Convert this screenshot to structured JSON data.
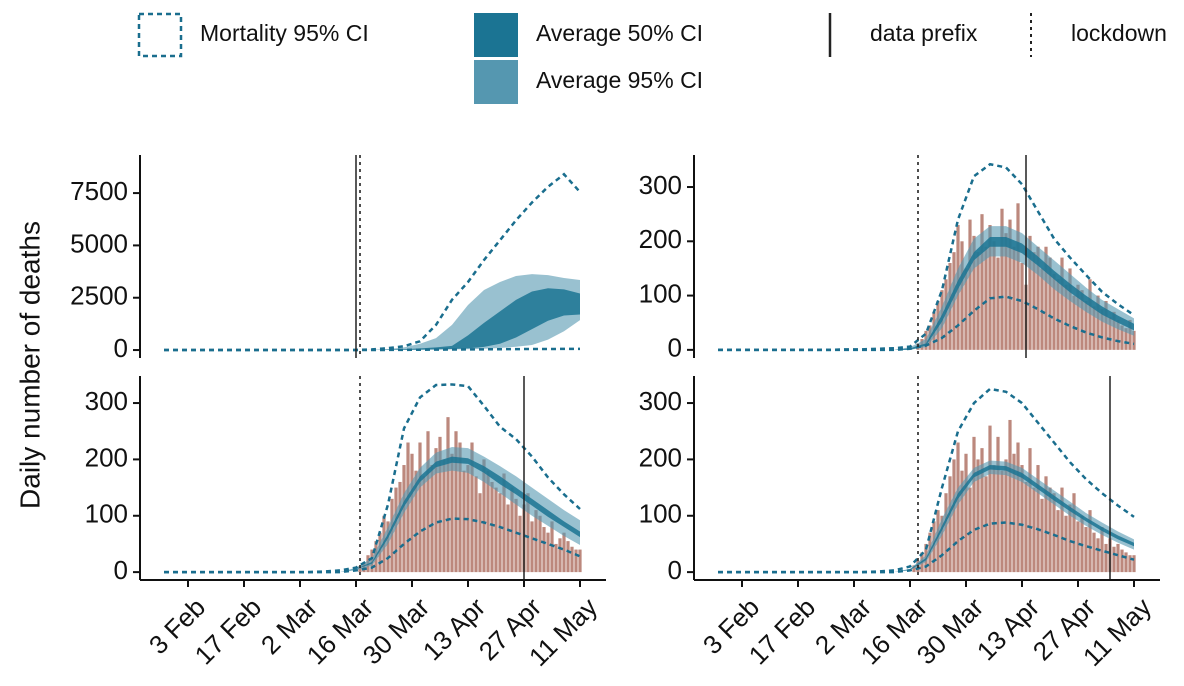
{
  "legend": [
    {
      "label": "Mortality 95% CI",
      "color": "#1a6e8e",
      "style": "dashed-box"
    },
    {
      "label": "Average 50% CI",
      "color": "#1b7493",
      "style": "fill"
    },
    {
      "label": "Average 95% CI",
      "color": "#5597b0",
      "style": "fill"
    },
    {
      "label": "data prefix",
      "color": "#222222",
      "style": "solid-line"
    },
    {
      "label": "lockdown",
      "color": "#222222",
      "style": "dotted-line"
    }
  ],
  "y_label": "Daily number of deaths",
  "x_axis": {
    "xlim": [
      22,
      137
    ],
    "xticks": [
      {
        "value": 34,
        "label": "3 Feb"
      },
      {
        "value": 48,
        "label": "17 Feb"
      },
      {
        "value": 62,
        "label": "2 Mar"
      },
      {
        "value": 76,
        "label": "16 Mar"
      },
      {
        "value": 90,
        "label": "30 Mar"
      },
      {
        "value": 104,
        "label": "13 Apr"
      },
      {
        "value": 118,
        "label": "27 Apr"
      },
      {
        "value": 132,
        "label": "11 May"
      }
    ]
  },
  "chart_data": [
    {
      "type": "band",
      "ylim": [
        -380,
        9320
      ],
      "yticks": [
        0,
        2500,
        5000,
        7500
      ],
      "x": [
        28,
        32,
        36,
        40,
        44,
        48,
        52,
        56,
        60,
        64,
        68,
        72,
        76,
        80,
        84,
        88,
        92,
        96,
        100,
        104,
        108,
        112,
        116,
        120,
        124,
        128,
        132
      ],
      "mortality": {
        "lower": [
          0,
          0,
          0,
          0,
          0,
          0,
          0,
          0,
          0,
          0,
          0,
          0,
          0,
          2,
          5,
          10,
          15,
          20,
          25,
          30,
          35,
          40,
          45,
          50,
          50,
          55,
          55
        ],
        "upper": [
          0,
          0,
          0,
          0,
          0,
          0,
          0,
          0,
          0,
          0,
          0,
          0,
          5,
          30,
          90,
          180,
          420,
          1200,
          2400,
          3250,
          4300,
          5250,
          6200,
          7050,
          7800,
          8400,
          7550
        ]
      },
      "avg95": {
        "lower": [
          0,
          0,
          0,
          0,
          0,
          0,
          0,
          0,
          0,
          0,
          0,
          0,
          0,
          0,
          2,
          5,
          10,
          20,
          30,
          40,
          60,
          100,
          160,
          240,
          500,
          900,
          1430
        ],
        "upper": [
          0,
          0,
          0,
          0,
          0,
          0,
          0,
          0,
          0,
          0,
          0,
          0,
          0,
          10,
          50,
          130,
          300,
          570,
          1200,
          2150,
          2870,
          3250,
          3540,
          3630,
          3580,
          3440,
          3350
        ]
      },
      "avg50": {
        "lower": [
          0,
          0,
          0,
          0,
          0,
          0,
          0,
          0,
          0,
          0,
          0,
          0,
          0,
          1,
          5,
          10,
          20,
          30,
          50,
          80,
          150,
          300,
          600,
          1000,
          1400,
          1650,
          1700
        ],
        "upper": [
          0,
          0,
          0,
          0,
          0,
          0,
          0,
          0,
          0,
          0,
          0,
          0,
          0,
          3,
          15,
          40,
          80,
          130,
          200,
          700,
          1300,
          1850,
          2400,
          2800,
          2950,
          2900,
          2700
        ]
      },
      "data_prefix": 76,
      "lockdown": 77
    },
    {
      "type": "band",
      "ylim": [
        -15,
        359
      ],
      "yticks": [
        0,
        100,
        200,
        300
      ],
      "x": [
        28,
        32,
        36,
        40,
        44,
        48,
        52,
        56,
        60,
        64,
        68,
        72,
        76,
        80,
        84,
        88,
        92,
        96,
        100,
        104,
        108,
        112,
        116,
        120,
        124,
        128,
        132
      ],
      "mortality": {
        "lower": [
          0,
          0,
          0,
          0,
          0,
          0,
          0,
          0,
          0,
          0,
          0,
          0,
          2,
          8,
          22,
          45,
          72,
          95,
          98,
          90,
          75,
          58,
          44,
          32,
          23,
          16,
          11
        ],
        "upper": [
          0,
          0,
          0,
          0,
          0,
          0,
          0,
          0,
          1,
          1,
          2,
          3,
          6,
          30,
          110,
          240,
          320,
          342,
          336,
          305,
          255,
          205,
          170,
          138,
          107,
          84,
          64
        ]
      },
      "avg95": {
        "lower": [
          0,
          0,
          0,
          0,
          0,
          0,
          0,
          0,
          0,
          0,
          0,
          0,
          0,
          5,
          40,
          100,
          150,
          172,
          172,
          160,
          138,
          112,
          90,
          70,
          52,
          38,
          26
        ],
        "upper": [
          0,
          0,
          0,
          0,
          0,
          0,
          0,
          0,
          0,
          0,
          0,
          0,
          5,
          20,
          80,
          150,
          205,
          228,
          228,
          215,
          190,
          165,
          140,
          115,
          92,
          75,
          58
        ]
      },
      "avg50": {
        "lower": [
          0,
          0,
          0,
          0,
          0,
          0,
          0,
          0,
          0,
          0,
          0,
          0,
          0,
          8,
          52,
          112,
          165,
          190,
          190,
          178,
          155,
          130,
          106,
          85,
          65,
          50,
          36
        ],
        "upper": [
          0,
          0,
          0,
          0,
          0,
          0,
          0,
          0,
          0,
          0,
          0,
          0,
          3,
          12,
          65,
          128,
          180,
          208,
          208,
          196,
          172,
          146,
          122,
          100,
          80,
          63,
          48
        ]
      },
      "bars": {
        "x": [
          78,
          79,
          80,
          81,
          82,
          83,
          84,
          85,
          86,
          87,
          88,
          89,
          90,
          91,
          92,
          93,
          94,
          95,
          96,
          97,
          98,
          99,
          100,
          101,
          102,
          103,
          104,
          105,
          106,
          107,
          108,
          109,
          110,
          111,
          112,
          113,
          114,
          115,
          116,
          117,
          118,
          119,
          120,
          121,
          122,
          123,
          124,
          125,
          126,
          127,
          128,
          129,
          130,
          131,
          132
        ],
        "values": [
          12,
          20,
          35,
          45,
          70,
          90,
          110,
          130,
          160,
          180,
          230,
          200,
          150,
          240,
          210,
          180,
          250,
          190,
          230,
          200,
          170,
          260,
          215,
          240,
          190,
          270,
          160,
          120,
          210,
          180,
          190,
          150,
          190,
          170,
          140,
          130,
          170,
          120,
          150,
          100,
          120,
          110,
          90,
          130,
          80,
          100,
          75,
          90,
          60,
          70,
          55,
          45,
          40,
          55,
          35
        ]
      },
      "data_prefix": 105,
      "lockdown": 78
    },
    {
      "type": "band",
      "ylim": [
        -14,
        348
      ],
      "yticks": [
        0,
        100,
        200,
        300
      ],
      "x": [
        28,
        32,
        36,
        40,
        44,
        48,
        52,
        56,
        60,
        64,
        68,
        72,
        76,
        80,
        84,
        88,
        92,
        96,
        100,
        104,
        108,
        112,
        116,
        120,
        124,
        128,
        132
      ],
      "mortality": {
        "lower": [
          0,
          0,
          0,
          0,
          0,
          0,
          0,
          0,
          0,
          0,
          0,
          0,
          3,
          8,
          25,
          50,
          72,
          88,
          95,
          94,
          88,
          80,
          70,
          60,
          50,
          40,
          28
        ],
        "upper": [
          0,
          0,
          0,
          0,
          0,
          0,
          0,
          0,
          0,
          0,
          1,
          3,
          8,
          25,
          120,
          255,
          310,
          332,
          333,
          330,
          295,
          258,
          236,
          205,
          168,
          138,
          112
        ]
      },
      "avg95": {
        "lower": [
          0,
          0,
          0,
          0,
          0,
          0,
          0,
          0,
          0,
          0,
          0,
          0,
          3,
          12,
          50,
          105,
          150,
          175,
          180,
          176,
          160,
          140,
          120,
          100,
          82,
          64,
          48
        ],
        "upper": [
          0,
          0,
          0,
          0,
          0,
          0,
          0,
          0,
          0,
          0,
          0,
          0,
          8,
          25,
          80,
          140,
          185,
          212,
          222,
          220,
          205,
          188,
          170,
          150,
          130,
          110,
          92
        ]
      },
      "avg50": {
        "lower": [
          0,
          0,
          0,
          0,
          0,
          0,
          0,
          0,
          0,
          0,
          0,
          0,
          5,
          15,
          60,
          116,
          160,
          186,
          194,
          192,
          176,
          156,
          138,
          118,
          98,
          80,
          62
        ],
        "upper": [
          0,
          0,
          0,
          0,
          0,
          0,
          0,
          0,
          0,
          0,
          0,
          0,
          6,
          18,
          68,
          126,
          170,
          196,
          205,
          202,
          188,
          170,
          150,
          130,
          110,
          90,
          72
        ]
      },
      "bars": {
        "x": [
          77,
          78,
          79,
          80,
          81,
          82,
          83,
          84,
          85,
          86,
          87,
          88,
          89,
          90,
          91,
          92,
          93,
          94,
          95,
          96,
          97,
          98,
          99,
          100,
          101,
          102,
          103,
          104,
          105,
          106,
          107,
          108,
          109,
          110,
          111,
          112,
          113,
          114,
          115,
          116,
          117,
          118,
          119,
          120,
          121,
          122,
          123,
          124,
          125,
          126,
          127,
          128,
          129,
          130,
          131,
          132
        ],
        "values": [
          10,
          15,
          30,
          40,
          55,
          70,
          100,
          90,
          130,
          150,
          160,
          190,
          230,
          210,
          180,
          230,
          170,
          250,
          190,
          220,
          240,
          200,
          275,
          210,
          250,
          230,
          180,
          190,
          230,
          170,
          140,
          200,
          180,
          160,
          150,
          140,
          175,
          120,
          150,
          130,
          100,
          120,
          140,
          90,
          110,
          100,
          80,
          70,
          90,
          50,
          60,
          70,
          55,
          45,
          40,
          40
        ]
      },
      "data_prefix": 118,
      "lockdown": 77
    },
    {
      "type": "band",
      "ylim": [
        -14,
        348
      ],
      "yticks": [
        0,
        100,
        200,
        300
      ],
      "x": [
        28,
        32,
        36,
        40,
        44,
        48,
        52,
        56,
        60,
        64,
        68,
        72,
        76,
        80,
        84,
        88,
        92,
        96,
        100,
        104,
        108,
        112,
        116,
        120,
        124,
        128,
        132
      ],
      "mortality": {
        "lower": [
          0,
          0,
          0,
          0,
          0,
          0,
          0,
          0,
          0,
          0,
          0,
          0,
          3,
          10,
          30,
          55,
          75,
          86,
          88,
          84,
          76,
          66,
          55,
          46,
          38,
          30,
          22
        ],
        "upper": [
          0,
          0,
          0,
          0,
          0,
          0,
          0,
          0,
          0,
          0,
          1,
          3,
          10,
          40,
          150,
          250,
          300,
          325,
          320,
          300,
          265,
          230,
          195,
          165,
          140,
          118,
          98
        ]
      },
      "avg95": {
        "lower": [
          0,
          0,
          0,
          0,
          0,
          0,
          0,
          0,
          0,
          0,
          0,
          0,
          3,
          18,
          65,
          120,
          160,
          174,
          172,
          160,
          140,
          120,
          100,
          82,
          66,
          52,
          40
        ],
        "upper": [
          0,
          0,
          0,
          0,
          0,
          0,
          0,
          0,
          0,
          0,
          0,
          0,
          6,
          30,
          95,
          150,
          185,
          198,
          196,
          185,
          165,
          145,
          125,
          105,
          88,
          72,
          58
        ]
      },
      "avg50": {
        "lower": [
          0,
          0,
          0,
          0,
          0,
          0,
          0,
          0,
          0,
          0,
          0,
          0,
          4,
          21,
          74,
          130,
          168,
          182,
          180,
          167,
          147,
          127,
          108,
          90,
          73,
          58,
          46
        ],
        "upper": [
          0,
          0,
          0,
          0,
          0,
          0,
          0,
          0,
          0,
          0,
          0,
          0,
          5,
          25,
          82,
          140,
          176,
          190,
          188,
          176,
          156,
          136,
          116,
          97,
          80,
          65,
          52
        ]
      },
      "bars": {
        "x": [
          77,
          78,
          79,
          80,
          81,
          82,
          83,
          84,
          85,
          86,
          87,
          88,
          89,
          90,
          91,
          92,
          93,
          94,
          95,
          96,
          97,
          98,
          99,
          100,
          101,
          102,
          103,
          104,
          105,
          106,
          107,
          108,
          109,
          110,
          111,
          112,
          113,
          114,
          115,
          116,
          117,
          118,
          119,
          120,
          121,
          122,
          123,
          124,
          125,
          126,
          127,
          128,
          129,
          130,
          131,
          132
        ],
        "values": [
          12,
          20,
          35,
          50,
          70,
          90,
          110,
          100,
          140,
          170,
          200,
          230,
          180,
          210,
          150,
          240,
          200,
          220,
          170,
          260,
          190,
          240,
          180,
          200,
          270,
          210,
          230,
          190,
          160,
          220,
          150,
          190,
          130,
          170,
          150,
          140,
          110,
          150,
          100,
          120,
          140,
          90,
          100,
          80,
          110,
          70,
          60,
          80,
          50,
          60,
          45,
          50,
          40,
          35,
          30,
          30
        ]
      },
      "data_prefix": 126,
      "lockdown": 78
    }
  ]
}
